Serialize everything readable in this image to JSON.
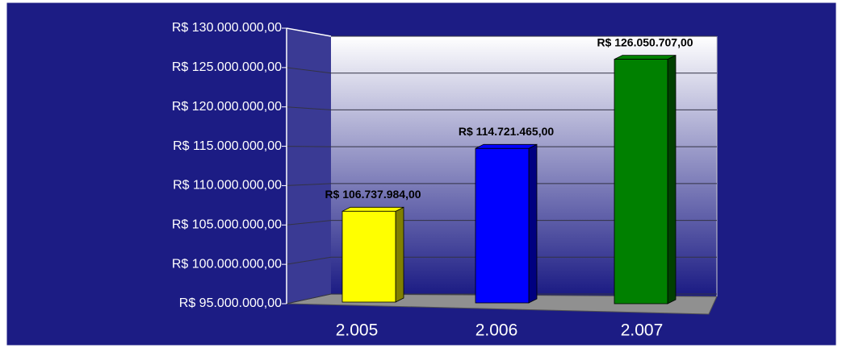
{
  "chart_data": {
    "type": "bar3d",
    "categories": [
      "2.005",
      "2.006",
      "2.007"
    ],
    "values": [
      106737984,
      114721465,
      126050707
    ],
    "value_labels": [
      "R$ 106.737.984,00",
      "R$ 114.721.465,00",
      "R$ 126.050.707,00"
    ],
    "colors": [
      "#ffff00",
      "#0000ff",
      "#008000"
    ],
    "ylim": [
      95000000,
      130000000
    ],
    "yticks": [
      {
        "value": 95000000,
        "label": "R$ 95.000.000,00"
      },
      {
        "value": 100000000,
        "label": "R$ 100.000.000,00"
      },
      {
        "value": 105000000,
        "label": "R$ 105.000.000,00"
      },
      {
        "value": 110000000,
        "label": "R$ 110.000.000,00"
      },
      {
        "value": 115000000,
        "label": "R$ 115.000.000,00"
      },
      {
        "value": 120000000,
        "label": "R$ 120.000.000,00"
      },
      {
        "value": 125000000,
        "label": "R$ 125.000.000,00"
      },
      {
        "value": 130000000,
        "label": "R$ 130.000.000,00"
      }
    ],
    "grid": true
  }
}
